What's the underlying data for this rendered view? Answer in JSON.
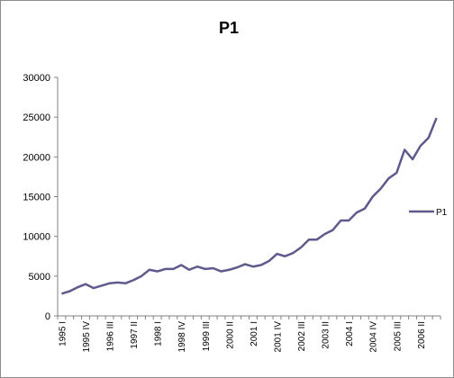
{
  "chart_data": {
    "type": "line",
    "title": "P1",
    "xlabel": "",
    "ylabel": "",
    "ylim": [
      0,
      30000
    ],
    "yticks": [
      0,
      5000,
      10000,
      15000,
      20000,
      25000,
      30000
    ],
    "ytick_labels": [
      "0",
      "5000",
      "10000",
      "15000",
      "20000",
      "25000",
      "30000"
    ],
    "grid": false,
    "legend_position": "right",
    "categories": [
      "1995 I",
      "1995 II",
      "1995 III",
      "1995 IV",
      "1996 I",
      "1996 II",
      "1996 III",
      "1996 IV",
      "1997 I",
      "1997 II",
      "1997 III",
      "1997 IV",
      "1998 I",
      "1998 II",
      "1998 III",
      "1998 IV",
      "1999 I",
      "1999 II",
      "1999 III",
      "1999 IV",
      "2000 I",
      "2000 II",
      "2000 III",
      "2000 IV",
      "2001 I",
      "2001 II",
      "2001 III",
      "2001 IV",
      "2002 I",
      "2002 II",
      "2002 III",
      "2002 IV",
      "2003 I",
      "2003 II",
      "2003 III",
      "2003 IV",
      "2004 I",
      "2004 II",
      "2004 III",
      "2004 IV",
      "2005 I",
      "2005 II",
      "2005 III",
      "2005 IV",
      "2006 I",
      "2006 II",
      "2006 III",
      "2006 IV"
    ],
    "visible_tick_labels": [
      "1995 I",
      "1995 IV",
      "1996 III",
      "1997 II",
      "1998 I",
      "1998 IV",
      "1999 III",
      "2000 II",
      "2001 I",
      "2001 IV",
      "2002 III",
      "2003 II",
      "2004 I",
      "2004 IV",
      "2005 III",
      "2006 II"
    ],
    "series": [
      {
        "name": "P1",
        "color": "#5f5a8c",
        "values": [
          2800,
          3100,
          3600,
          4000,
          3500,
          3800,
          4100,
          4200,
          4100,
          4500,
          5000,
          5800,
          5600,
          5900,
          5900,
          6400,
          5800,
          6200,
          5900,
          6000,
          5600,
          5800,
          6100,
          6500,
          6200,
          6400,
          6900,
          7800,
          7500,
          7900,
          8600,
          9600,
          9600,
          10300,
          10800,
          12000,
          12000,
          13000,
          13500,
          15000,
          16000,
          17300,
          18000,
          20900,
          19700,
          21400,
          22400,
          24900
        ]
      }
    ]
  }
}
